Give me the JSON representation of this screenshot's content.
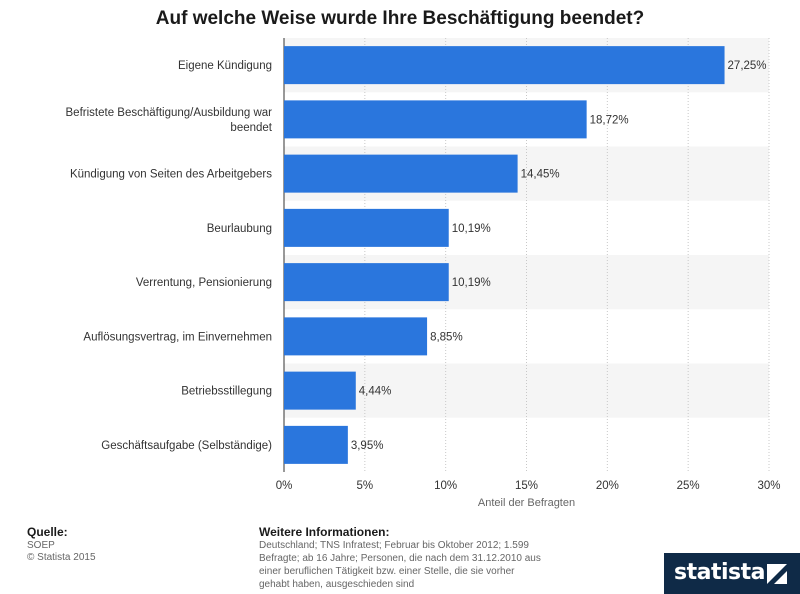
{
  "chart_data": {
    "type": "bar",
    "orientation": "horizontal",
    "title": "Auf welche Weise wurde Ihre Beschäftigung beendet?",
    "categories": [
      "Eigene Kündigung",
      "Befristete Beschäftigung/Ausbildung war beendet",
      "Kündigung von Seiten des Arbeitgebers",
      "Beurlaubung",
      "Verrentung, Pensionierung",
      "Auflösungsvertrag, im Einvernehmen",
      "Betriebsstillegung",
      "Geschäftsaufgabe (Selbständige)"
    ],
    "values": [
      27.25,
      18.72,
      14.45,
      10.19,
      10.19,
      8.85,
      4.44,
      3.95
    ],
    "value_labels": [
      "27,25%",
      "18,72%",
      "14,45%",
      "10,19%",
      "10,19%",
      "8,85%",
      "4,44%",
      "3,95%"
    ],
    "xlabel": "Anteil der Befragten",
    "ylabel": "",
    "xlim": [
      0,
      30
    ],
    "x_ticks": [
      0,
      5,
      10,
      15,
      20,
      25,
      30
    ],
    "x_tick_labels": [
      "0%",
      "5%",
      "10%",
      "15%",
      "20%",
      "25%",
      "30%"
    ],
    "grid": true,
    "colors": {
      "bar": "#2a76dd",
      "band": "#f5f5f5"
    }
  },
  "footer": {
    "source_heading": "Quelle:",
    "source": "SOEP",
    "copyright": "© Statista 2015",
    "info_heading": "Weitere Informationen:",
    "info_lines": [
      "Deutschland; TNS Infratest; Februar bis Oktober 2012; 1.599",
      "Befragte; ab 16 Jahre; Personen, die nach dem 31.12.2010 aus",
      "einer beruflichen Tätigkeit bzw. einer Stelle, die sie vorher",
      "gehabt haben, ausgeschieden sind"
    ]
  },
  "brand": {
    "logo_text": "statista",
    "color": "#0f2a47"
  }
}
